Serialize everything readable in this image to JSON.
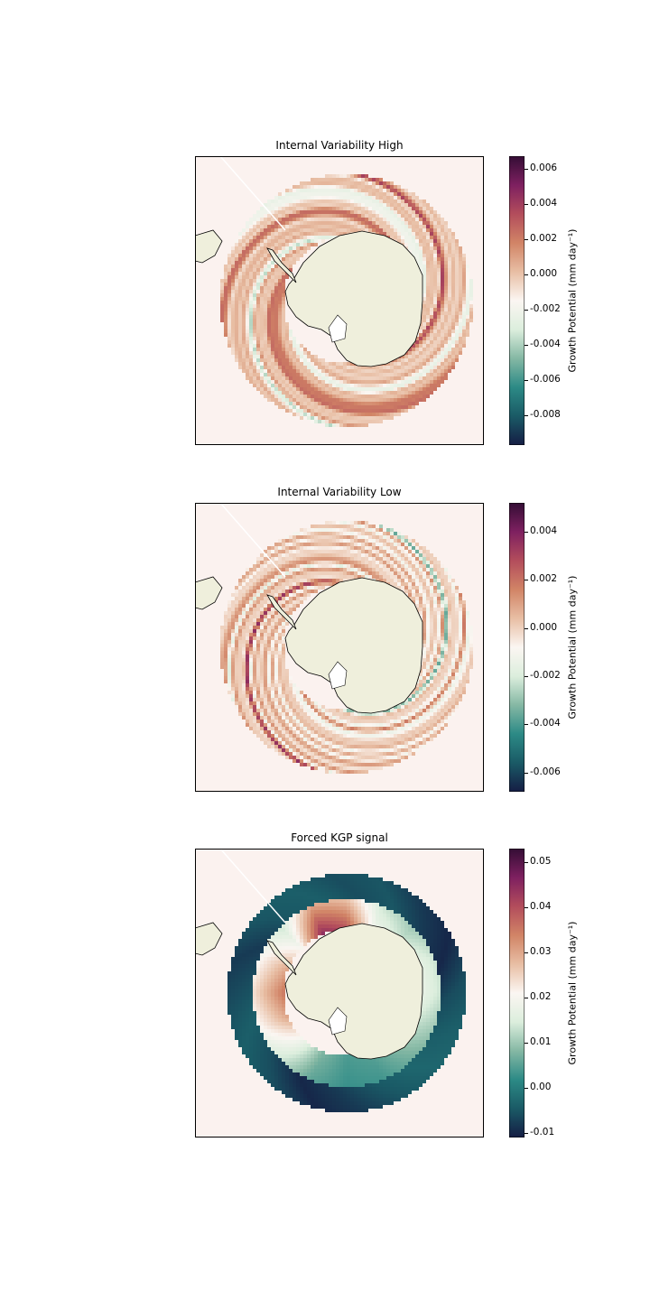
{
  "colormap": {
    "name": "curl",
    "stops": [
      "#151d44",
      "#1a5a66",
      "#2c8a86",
      "#85b8a4",
      "#dceedd",
      "#fbf6f2",
      "#e8bea4",
      "#d18466",
      "#b34d5c",
      "#7e2060",
      "#340d35"
    ],
    "background": "#fbf2ef",
    "land": "#efefdc",
    "coast": "#000000"
  },
  "panels": [
    {
      "id": "high",
      "title": "Internal Variability High",
      "colorbar": {
        "label": "Growth Potential (mm day⁻¹)",
        "vmin": -0.0097,
        "vmax": 0.0067,
        "ticks": [
          "-0.008",
          "-0.006",
          "-0.004",
          "-0.002",
          "0.000",
          "0.002",
          "0.004",
          "0.006"
        ]
      },
      "chart_data": {
        "type": "heatmap",
        "title": "Internal Variability High",
        "projection": "south polar stereographic",
        "colorbar_label": "Growth Potential (mm day⁻¹)",
        "colorbar_range": [
          -0.0097,
          0.0067
        ],
        "pattern": "mixed positive/negative anomalies in ring",
        "ring_values_sample": [
          0.002,
          0.003,
          -0.001,
          0.0015,
          -0.002,
          0.004,
          0.001,
          -0.0015,
          0.003,
          0.0005,
          -0.001,
          0.002,
          0.0035,
          -0.0025,
          0.001,
          0.0025
        ]
      }
    },
    {
      "id": "low",
      "title": "Internal Variability Low",
      "colorbar": {
        "label": "Growth Potential (mm day⁻¹)",
        "vmin": -0.0068,
        "vmax": 0.0052,
        "ticks": [
          "-0.006",
          "-0.004",
          "-0.002",
          "0.000",
          "0.002",
          "0.004"
        ]
      },
      "chart_data": {
        "type": "heatmap",
        "title": "Internal Variability Low",
        "projection": "south polar stereographic",
        "colorbar_label": "Growth Potential (mm day⁻¹)",
        "colorbar_range": [
          -0.0068,
          0.0052
        ],
        "pattern": "mixed positive/negative anomalies in ring",
        "ring_values_sample": [
          0.001,
          -0.0015,
          0.003,
          0.002,
          -0.002,
          0.0015,
          -0.004,
          0.001,
          -0.001,
          0.0025,
          -0.002,
          0.0015,
          0.001,
          -0.001,
          0.002,
          -0.0015
        ]
      }
    },
    {
      "id": "forced",
      "title": "Forced KGP signal",
      "colorbar": {
        "label": "Growth Potential (mm day⁻¹)",
        "vmin": -0.011,
        "vmax": 0.053,
        "ticks": [
          "-0.01",
          "0.00",
          "0.01",
          "0.02",
          "0.03",
          "0.04",
          "0.05"
        ]
      },
      "chart_data": {
        "type": "heatmap",
        "title": "Forced KGP signal",
        "projection": "south polar stereographic",
        "colorbar_label": "Growth Potential (mm day⁻¹)",
        "colorbar_range": [
          -0.011,
          0.053
        ],
        "pattern": "negative outer ring, positive inner ring",
        "inner_ring_values_sample": [
          0.02,
          0.015,
          0.01,
          0.005,
          0.004,
          0.008,
          0.02,
          0.03,
          0.035,
          0.03,
          0.02,
          0.045,
          0.04,
          0.02,
          0.015,
          0.02
        ],
        "outer_ring_values_sample": [
          -0.005,
          -0.008,
          -0.01,
          -0.006,
          -0.004,
          -0.003,
          -0.005,
          -0.008,
          -0.01,
          -0.006,
          -0.004,
          -0.006,
          -0.008,
          -0.005,
          -0.004,
          -0.006
        ]
      }
    }
  ]
}
